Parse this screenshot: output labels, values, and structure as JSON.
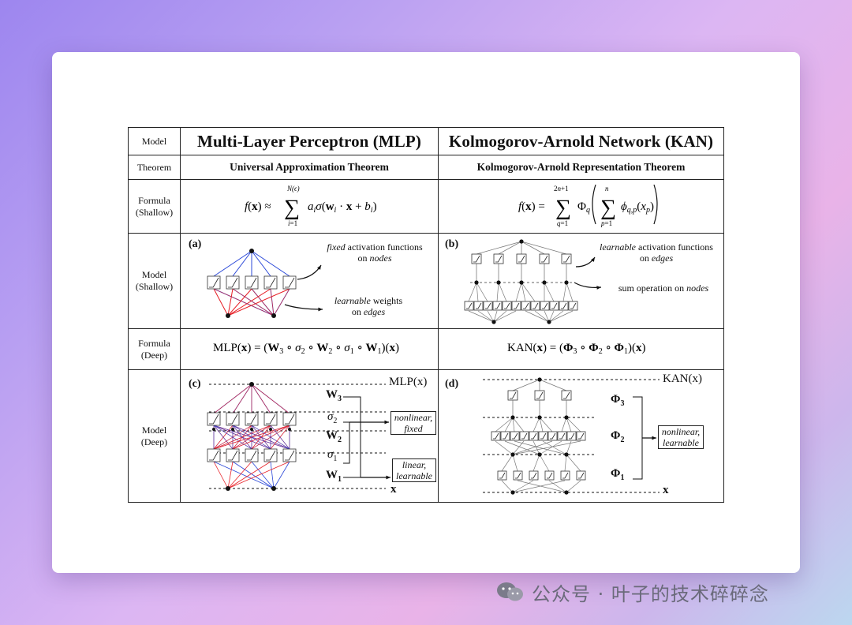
{
  "rows": {
    "model_label": "Model",
    "theorem_label": "Theorem",
    "formula_shallow_label": [
      "Formula",
      "(Shallow)"
    ],
    "model_shallow_label": [
      "Model",
      "(Shallow)"
    ],
    "formula_deep_label": [
      "Formula",
      "(Deep)"
    ],
    "model_deep_label": [
      "Model",
      "(Deep)"
    ]
  },
  "mlp": {
    "title": "Multi-Layer Perceptron (MLP)",
    "theorem": "Universal Approximation Theorem",
    "panel_a_tag": "(a)",
    "panel_c_tag": "(c)",
    "ann_fixed": [
      "fixed",
      " activation functions",
      "on ",
      "nodes"
    ],
    "ann_learnable": [
      "learnable",
      " weights",
      "on ",
      "edges"
    ],
    "deep_output": "MLP(x)",
    "deep_input": "x",
    "W3": "W",
    "W3_sub": "3",
    "W2": "W",
    "W2_sub": "2",
    "W1": "W",
    "W1_sub": "1",
    "sigma2": "σ",
    "sigma2_sub": "2",
    "sigma1": "σ",
    "sigma1_sub": "1",
    "box_nonlinear": [
      "nonlinear,",
      "fixed"
    ],
    "box_linear": [
      "linear,",
      "learnable"
    ]
  },
  "kan": {
    "title": "Kolmogorov-Arnold Network (KAN)",
    "theorem": "Kolmogorov-Arnold Representation Theorem",
    "panel_b_tag": "(b)",
    "panel_d_tag": "(d)",
    "ann_learnable": [
      "learnable",
      " activation functions",
      "on ",
      "edges"
    ],
    "ann_sum": [
      "sum operation on ",
      "nodes"
    ],
    "deep_output": "KAN(x)",
    "deep_input": "x",
    "Phi3": "Φ",
    "Phi3_sub": "3",
    "Phi2": "Φ",
    "Phi2_sub": "2",
    "Phi1": "Φ",
    "Phi1_sub": "1",
    "box_nonlinear": [
      "nonlinear,",
      "learnable"
    ]
  },
  "watermark": {
    "text": "公众号 · 叶子的技术碎碎念",
    "icon": "wechat-icon"
  },
  "colors": {
    "red_edge": "#e8232a",
    "blue_edge": "#2b48d8",
    "gray_edge": "#7a7a7a"
  }
}
